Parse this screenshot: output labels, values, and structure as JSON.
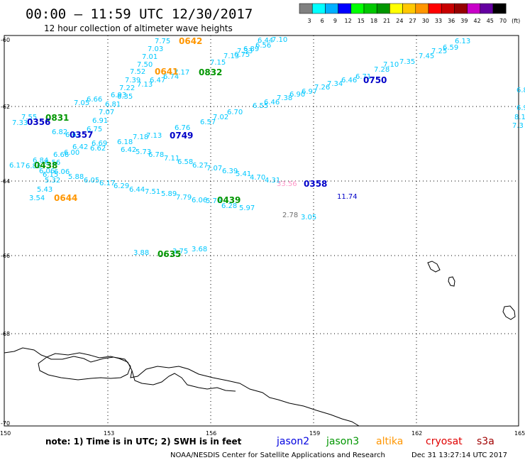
{
  "header": {
    "title": "00:00 – 11:59 UTC 12/30/2017",
    "subtitle": "12 hour collection of altimeter wave heights"
  },
  "scale": {
    "colors": [
      "#808080",
      "#00ffff",
      "#00b0ff",
      "#0000ff",
      "#00ff00",
      "#00c800",
      "#009600",
      "#ffff00",
      "#ffc800",
      "#ff9600",
      "#ff0000",
      "#c80000",
      "#960000",
      "#c800c8",
      "#6400a0",
      "#000000"
    ],
    "labels": [
      "3",
      "6",
      "9",
      "12",
      "15",
      "18",
      "21",
      "24",
      "27",
      "30",
      "33",
      "36",
      "39",
      "42",
      "45",
      "70",
      "(ft)"
    ]
  },
  "axes": {
    "lat_labels": [
      "-60",
      "-62",
      "-64",
      "-66",
      "-68",
      "-70"
    ],
    "lon_labels": [
      "150",
      "153",
      "156",
      "159",
      "162",
      "165"
    ]
  },
  "observations": [
    {
      "t": "7.75",
      "c": "#00c8ff"
    },
    {
      "t": "7.03",
      "c": "#00c8ff"
    },
    {
      "t": "7.01",
      "c": "#00c8ff"
    },
    {
      "t": "7.50",
      "c": "#00c8ff"
    },
    {
      "t": "7.52",
      "c": "#00c8ff"
    },
    {
      "t": "7.39",
      "c": "#00c8ff"
    },
    {
      "t": "7.13",
      "c": "#00c8ff"
    },
    {
      "t": "7.22",
      "c": "#00c8ff"
    },
    {
      "t": "6.47",
      "c": "#00c8ff"
    },
    {
      "t": "7.17",
      "c": "#00c8ff"
    },
    {
      "t": "6.74",
      "c": "#00c8ff"
    },
    {
      "t": "6.93",
      "c": "#00c8ff"
    },
    {
      "t": "6.35",
      "c": "#00c8ff"
    },
    {
      "t": "6.66",
      "c": "#00c8ff"
    },
    {
      "t": "7.05",
      "c": "#00c8ff"
    },
    {
      "t": "6.81",
      "c": "#00c8ff"
    },
    {
      "t": "7.07",
      "c": "#00c8ff"
    },
    {
      "t": "6.91",
      "c": "#00c8ff"
    },
    {
      "t": "6.75",
      "c": "#00c8ff"
    },
    {
      "t": "7.55",
      "c": "#00c8ff"
    },
    {
      "t": "7.33",
      "c": "#00c8ff"
    },
    {
      "t": "6.82",
      "c": "#00c8ff"
    },
    {
      "t": "6.67",
      "c": "#00c8ff"
    },
    {
      "t": "6.42",
      "c": "#00c8ff"
    },
    {
      "t": "6.69",
      "c": "#00c8ff"
    },
    {
      "t": "6.62",
      "c": "#00c8ff"
    },
    {
      "t": "6.18",
      "c": "#00c8ff"
    },
    {
      "t": "6.42",
      "c": "#00c8ff"
    },
    {
      "t": "7.18",
      "c": "#00c8ff"
    },
    {
      "t": "7.13",
      "c": "#00c8ff"
    },
    {
      "t": "6.76",
      "c": "#00c8ff"
    },
    {
      "t": "6.57",
      "c": "#00c8ff"
    },
    {
      "t": "7.02",
      "c": "#00c8ff"
    },
    {
      "t": "6.70",
      "c": "#00c8ff"
    },
    {
      "t": "6.55",
      "c": "#00c8ff"
    },
    {
      "t": "6.46",
      "c": "#00c8ff"
    },
    {
      "t": "7.38",
      "c": "#00c8ff"
    },
    {
      "t": "6.90",
      "c": "#00c8ff"
    },
    {
      "t": "6.97",
      "c": "#00c8ff"
    },
    {
      "t": "7.26",
      "c": "#00c8ff"
    },
    {
      "t": "7.34",
      "c": "#00c8ff"
    },
    {
      "t": "6.46",
      "c": "#00c8ff"
    },
    {
      "t": "6.71",
      "c": "#00c8ff"
    },
    {
      "t": "7.28",
      "c": "#00c8ff"
    },
    {
      "t": "7.10",
      "c": "#00c8ff"
    },
    {
      "t": "7.35",
      "c": "#00c8ff"
    },
    {
      "t": "7.45",
      "c": "#00c8ff"
    },
    {
      "t": "7.25",
      "c": "#00c8ff"
    },
    {
      "t": "6.59",
      "c": "#00c8ff"
    },
    {
      "t": "6.13",
      "c": "#00c8ff"
    },
    {
      "t": "7.15",
      "c": "#00c8ff"
    },
    {
      "t": "7.13",
      "c": "#00c8ff"
    },
    {
      "t": "7.33",
      "c": "#00c8ff"
    },
    {
      "t": "6.89",
      "c": "#00c8ff"
    },
    {
      "t": "6.56",
      "c": "#00c8ff"
    },
    {
      "t": "7.10",
      "c": "#00c8ff"
    },
    {
      "t": "6.44",
      "c": "#00c8ff"
    },
    {
      "t": "6.75",
      "c": "#00c8ff"
    },
    {
      "t": "5.73",
      "c": "#00c8ff"
    },
    {
      "t": "6.78",
      "c": "#00c8ff"
    },
    {
      "t": "7.11",
      "c": "#00c8ff"
    },
    {
      "t": "6.58",
      "c": "#00c8ff"
    },
    {
      "t": "6.27",
      "c": "#00c8ff"
    },
    {
      "t": "7.07",
      "c": "#00c8ff"
    },
    {
      "t": "6.39",
      "c": "#00c8ff"
    },
    {
      "t": "5.41",
      "c": "#00c8ff"
    },
    {
      "t": "4.70",
      "c": "#00c8ff"
    },
    {
      "t": "4.31",
      "c": "#00c8ff"
    },
    {
      "t": "33.56",
      "c": "#ff96c8"
    },
    {
      "t": "11.74",
      "c": "#0000c8"
    },
    {
      "t": "2.78",
      "c": "#707070"
    },
    {
      "t": "3.05",
      "c": "#00c8ff"
    },
    {
      "t": "6.17",
      "c": "#00c8ff"
    },
    {
      "t": "6.86",
      "c": "#00c8ff"
    },
    {
      "t": "6.56",
      "c": "#00c8ff"
    },
    {
      "t": "6.06",
      "c": "#00c8ff"
    },
    {
      "t": "6.66",
      "c": "#00c8ff"
    },
    {
      "t": "6.00",
      "c": "#00c8ff"
    },
    {
      "t": "6.84",
      "c": "#00c8ff"
    },
    {
      "t": "6.06",
      "c": "#00c8ff"
    },
    {
      "t": "6.15",
      "c": "#00c8ff"
    },
    {
      "t": "5.32",
      "c": "#00c8ff"
    },
    {
      "t": "5.43",
      "c": "#00c8ff"
    },
    {
      "t": "3.54",
      "c": "#00c8ff"
    },
    {
      "t": "5.88",
      "c": "#00c8ff"
    },
    {
      "t": "6.05",
      "c": "#00c8ff"
    },
    {
      "t": "6.17",
      "c": "#00c8ff"
    },
    {
      "t": "6.29",
      "c": "#00c8ff"
    },
    {
      "t": "6.44",
      "c": "#00c8ff"
    },
    {
      "t": "7.51",
      "c": "#00c8ff"
    },
    {
      "t": "5.89",
      "c": "#00c8ff"
    },
    {
      "t": "7.79",
      "c": "#00c8ff"
    },
    {
      "t": "6.06",
      "c": "#00c8ff"
    },
    {
      "t": "5.76",
      "c": "#00c8ff"
    },
    {
      "t": "6.28",
      "c": "#00c8ff"
    },
    {
      "t": "5.97",
      "c": "#00c8ff"
    },
    {
      "t": "3.88",
      "c": "#00c8ff"
    },
    {
      "t": "3.75",
      "c": "#00c8ff"
    },
    {
      "t": "3.68",
      "c": "#00c8ff"
    },
    {
      "t": "6.8",
      "c": "#00c8ff"
    },
    {
      "t": "6.9",
      "c": "#00c8ff"
    },
    {
      "t": "8.1",
      "c": "#00c8ff"
    },
    {
      "t": "7.3",
      "c": "#00c8ff"
    }
  ],
  "pass_times": [
    {
      "t": "0642",
      "c": "#ff9600"
    },
    {
      "t": "0641",
      "c": "#ff9600"
    },
    {
      "t": "0832",
      "c": "#009600"
    },
    {
      "t": "0750",
      "c": "#0000c8"
    },
    {
      "t": "0831",
      "c": "#009600"
    },
    {
      "t": "0356",
      "c": "#0000c8"
    },
    {
      "t": "0357",
      "c": "#0000c8"
    },
    {
      "t": "0749",
      "c": "#0000c8"
    },
    {
      "t": "0438",
      "c": "#009600"
    },
    {
      "t": "0358",
      "c": "#0000c8"
    },
    {
      "t": "0644",
      "c": "#ff9600"
    },
    {
      "t": "0439",
      "c": "#009600"
    },
    {
      "t": "0635",
      "c": "#009600"
    }
  ],
  "satellites": [
    {
      "name": "jason2",
      "c": "#0000e0"
    },
    {
      "name": "jason3",
      "c": "#009600"
    },
    {
      "name": "altika",
      "c": "#ff9600"
    },
    {
      "name": "cryosat",
      "c": "#e00000"
    },
    {
      "name": "s3a",
      "c": "#a00000"
    }
  ],
  "footer": {
    "note": "note:  1) Time is in UTC;  2) SWH is in feet",
    "credit": "NOAA/NESDIS Center for Satellite Applications and Research",
    "timestamp": "Dec 31 13:27:14 UTC 2017"
  }
}
